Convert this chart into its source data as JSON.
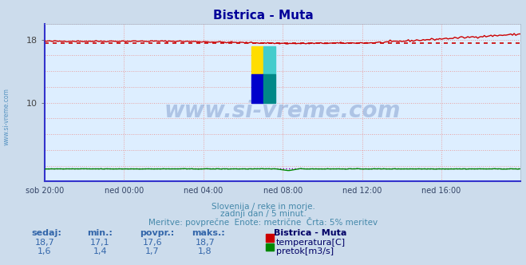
{
  "title": "Bistrica - Muta",
  "title_color": "#000099",
  "bg_color": "#ccdcec",
  "plot_bg_color": "#ddeeff",
  "grid_color": "#e8a0a0",
  "grid_style": ":",
  "xlabel_ticks": [
    "sob 20:00",
    "ned 00:00",
    "ned 04:00",
    "ned 08:00",
    "ned 12:00",
    "ned 16:00"
  ],
  "ylim": [
    0,
    20
  ],
  "ytick_labels": [
    "10",
    "18"
  ],
  "ytick_values": [
    10,
    18
  ],
  "temp_color": "#cc0000",
  "pretok_color": "#008800",
  "avg_temp_color": "#cc0000",
  "avg_pretok_color": "#8800aa",
  "border_color": "#3333cc",
  "watermark_text": "www.si-vreme.com",
  "watermark_color": "#4466aa",
  "watermark_alpha": 0.3,
  "side_watermark": "www.si-vreme.com",
  "side_watermark_color": "#4488bb",
  "subtitle1": "Slovenija / reke in morje.",
  "subtitle2": "zadnji dan / 5 minut.",
  "subtitle3": "Meritve: povprečne  Enote: metrične  Črta: 5% meritev",
  "subtitle_color": "#4488aa",
  "legend_header": "Bistrica - Muta",
  "legend_color": "#000066",
  "label_color": "#3366aa",
  "stats_labels": [
    "sedaj:",
    "min.:",
    "povpr.:",
    "maks.:"
  ],
  "stats_temp": [
    "18,7",
    "17,1",
    "17,6",
    "18,7"
  ],
  "stats_pretok": [
    "1,6",
    "1,4",
    "1,7",
    "1,8"
  ],
  "legend_temp": "temperatura[C]",
  "legend_pretok": "pretok[m3/s]",
  "temp_avg_value": 17.6,
  "pretok_avg_value": 1.7,
  "n_points": 289
}
